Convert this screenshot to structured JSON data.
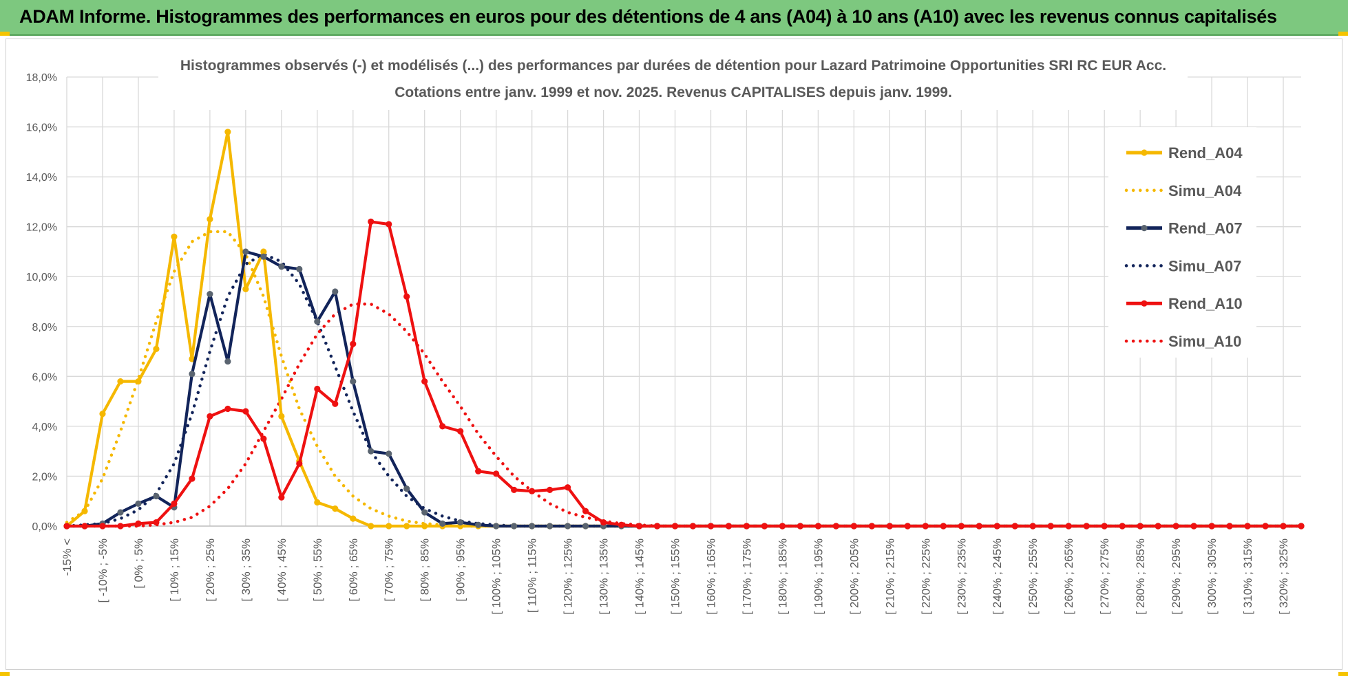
{
  "banner": {
    "title": "ADAM Informe. Histogrammes des performances en euros pour des détentions de 4 ans (A04) à 10 ans (A10) avec les revenus connus capitalisés"
  },
  "colors": {
    "banner_bg": "#7dc87f",
    "A04": "#f5b800",
    "A07": "#12245a",
    "A10": "#ee1111",
    "marker_A07": "#5a6470",
    "grid": "#d9d9d9"
  },
  "chart_data": {
    "type": "line",
    "title": "Histogrammes observés (-) et modélisés (...) des performances par durées de détention pour Lazard Patrimoine Opportunities SRI RC EUR Acc.",
    "subtitle": "Cotations entre janv. 1999 et nov. 2025. Revenus CAPITALISES depuis janv. 1999.",
    "ylim": [
      0,
      18
    ],
    "yticks": [
      0,
      2,
      4,
      6,
      8,
      10,
      12,
      14,
      16,
      18
    ],
    "ytick_labels": [
      "0,0%",
      "2,0%",
      "4,0%",
      "6,0%",
      "8,0%",
      "10,0%",
      "12,0%",
      "14,0%",
      "16,0%",
      "18,0%"
    ],
    "grid": true,
    "legend_position": "right",
    "x_tick_labels": [
      "-15% <",
      "[ -10% ; -5%",
      "[ 0% ; 5%",
      "[ 10% ; 15%",
      "[ 20% ; 25%",
      "[ 30% ; 35%",
      "[ 40% ; 45%",
      "[ 50% ; 55%",
      "[ 60% ; 65%",
      "[ 70% ; 75%",
      "[ 80% ; 85%",
      "[ 90% ; 95%",
      "[ 100% ; 105%",
      "[ 110% ; 115%",
      "[ 120% ; 125%",
      "[ 130% ; 135%",
      "[ 140% ; 145%",
      "[ 150% ; 155%",
      "[ 160% ; 165%",
      "[ 170% ; 175%",
      "[ 180% ; 185%",
      "[ 190% ; 195%",
      "[ 200% ; 205%",
      "[ 210% ; 215%",
      "[ 220% ; 225%",
      "[ 230% ; 235%",
      "[ 240% ; 245%",
      "[ 250% ; 255%",
      "[ 260% ; 265%",
      "[ 270% ; 275%",
      "[ 280% ; 285%",
      "[ 290% ; 295%",
      "[ 300% ; 305%",
      "[ 310% ; 315%",
      "[ 320% ; 325%"
    ],
    "bins": 70,
    "series": [
      {
        "name": "Rend_A04",
        "style": "solid",
        "color": "#f5b800",
        "values": [
          0,
          0.6,
          4.5,
          5.8,
          5.8,
          7.1,
          11.6,
          6.7,
          12.3,
          15.8,
          9.5,
          11.0,
          4.4,
          2.6,
          0.95,
          0.7,
          0.3,
          0,
          0,
          0,
          0,
          0,
          0,
          0,
          0,
          0,
          0,
          0,
          0,
          0,
          0,
          0,
          0,
          0,
          0,
          0,
          0,
          0,
          0,
          0,
          0,
          0,
          0,
          0,
          0,
          0,
          0,
          0,
          0,
          0,
          0,
          0,
          0,
          0,
          0,
          0,
          0,
          0,
          0,
          0,
          0,
          0,
          0,
          0,
          0,
          0,
          0,
          0,
          0,
          0
        ]
      },
      {
        "name": "Simu_A04",
        "style": "dotted",
        "color": "#f5b800",
        "values": [
          0.15,
          0.6,
          1.9,
          3.8,
          5.9,
          8.2,
          10.2,
          11.4,
          11.8,
          11.8,
          10.9,
          9.2,
          6.8,
          4.7,
          3.2,
          2.0,
          1.2,
          0.7,
          0.4,
          0.2,
          0.1,
          0.05,
          0,
          0,
          0,
          0,
          0,
          0,
          0,
          0,
          0,
          0,
          0,
          0,
          0,
          0,
          0,
          0,
          0,
          0,
          0,
          0,
          0,
          0,
          0,
          0,
          0,
          0,
          0,
          0,
          0,
          0,
          0,
          0,
          0,
          0,
          0,
          0,
          0,
          0,
          0,
          0,
          0,
          0,
          0,
          0,
          0,
          0,
          0,
          0
        ]
      },
      {
        "name": "Rend_A07",
        "style": "solid",
        "color": "#12245a",
        "values": [
          0,
          0,
          0.1,
          0.55,
          0.9,
          1.2,
          0.75,
          6.1,
          9.3,
          6.6,
          11.0,
          10.8,
          10.4,
          10.3,
          8.2,
          9.4,
          5.8,
          3.0,
          2.9,
          1.5,
          0.55,
          0.1,
          0.15,
          0.05,
          0,
          0,
          0,
          0,
          0,
          0,
          0,
          0,
          0,
          0,
          0,
          0,
          0,
          0,
          0,
          0,
          0,
          0,
          0,
          0,
          0,
          0,
          0,
          0,
          0,
          0,
          0,
          0,
          0,
          0,
          0,
          0,
          0,
          0,
          0,
          0,
          0,
          0,
          0,
          0,
          0,
          0,
          0,
          0,
          0,
          0
        ]
      },
      {
        "name": "Simu_A07",
        "style": "dotted",
        "color": "#12245a",
        "values": [
          0,
          0.05,
          0.1,
          0.3,
          0.65,
          1.3,
          2.5,
          4.5,
          7.0,
          9.2,
          10.5,
          10.9,
          10.6,
          9.7,
          8.2,
          6.4,
          4.6,
          3.0,
          2.0,
          1.2,
          0.7,
          0.4,
          0.2,
          0.1,
          0.05,
          0,
          0,
          0,
          0,
          0,
          0,
          0,
          0,
          0,
          0,
          0,
          0,
          0,
          0,
          0,
          0,
          0,
          0,
          0,
          0,
          0,
          0,
          0,
          0,
          0,
          0,
          0,
          0,
          0,
          0,
          0,
          0,
          0,
          0,
          0,
          0,
          0,
          0,
          0,
          0,
          0,
          0,
          0,
          0,
          0
        ]
      },
      {
        "name": "Rend_A10",
        "style": "solid",
        "color": "#ee1111",
        "values": [
          0,
          0,
          0,
          0,
          0.1,
          0.15,
          0.9,
          1.9,
          4.4,
          4.7,
          4.6,
          3.5,
          1.15,
          2.5,
          5.5,
          4.9,
          7.3,
          12.2,
          12.1,
          9.2,
          5.8,
          4.0,
          3.8,
          2.2,
          2.1,
          1.45,
          1.4,
          1.45,
          1.55,
          0.6,
          0.15,
          0.05,
          0,
          0,
          0,
          0,
          0,
          0,
          0,
          0,
          0,
          0,
          0,
          0,
          0,
          0,
          0,
          0,
          0,
          0,
          0,
          0,
          0,
          0,
          0,
          0,
          0,
          0,
          0,
          0,
          0,
          0,
          0,
          0,
          0,
          0,
          0,
          0,
          0,
          0
        ]
      },
      {
        "name": "Simu_A10",
        "style": "dotted",
        "color": "#ee1111",
        "values": [
          0,
          0,
          0,
          0,
          0,
          0.05,
          0.15,
          0.35,
          0.8,
          1.5,
          2.5,
          3.8,
          5.1,
          6.5,
          7.7,
          8.5,
          8.9,
          8.9,
          8.5,
          7.8,
          6.9,
          5.8,
          4.8,
          3.7,
          2.8,
          2.0,
          1.4,
          0.9,
          0.55,
          0.35,
          0.2,
          0.1,
          0.05,
          0,
          0,
          0,
          0,
          0,
          0,
          0,
          0,
          0,
          0,
          0,
          0,
          0,
          0,
          0,
          0,
          0,
          0,
          0,
          0,
          0,
          0,
          0,
          0,
          0,
          0,
          0,
          0,
          0,
          0,
          0,
          0,
          0,
          0,
          0,
          0,
          0
        ]
      }
    ]
  }
}
